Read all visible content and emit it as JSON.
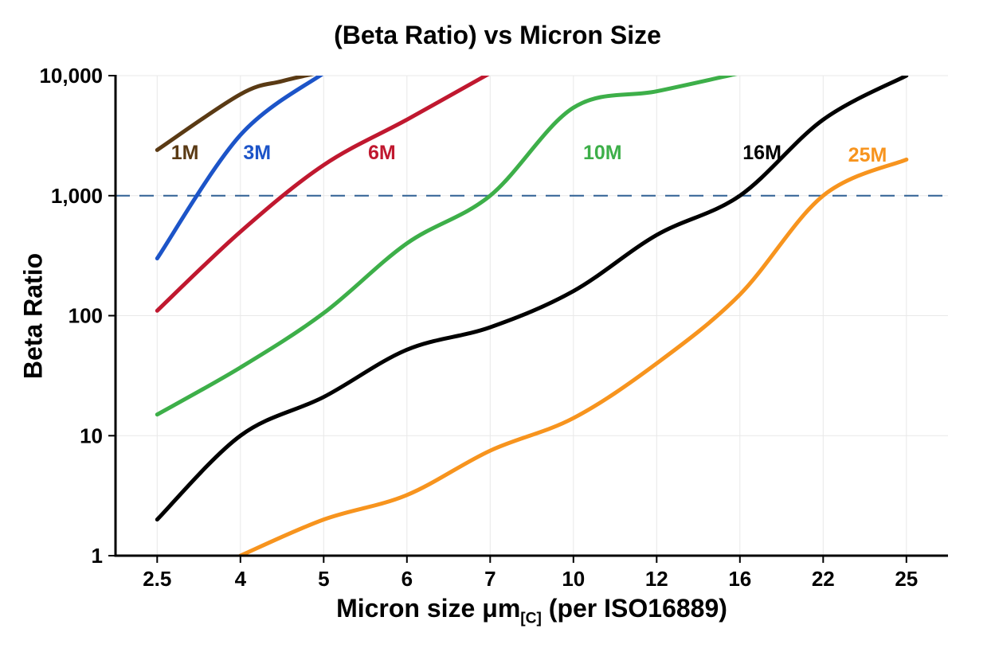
{
  "chart_data": {
    "type": "line",
    "title": "(Beta Ratio) vs Micron Size",
    "ylabel": "Beta Ratio",
    "xlabel_main": "Micron size μm",
    "xlabel_sub": "[C]",
    "xlabel_tail": " (per ISO16889)",
    "y_scale": "log",
    "ylim": [
      1,
      10000
    ],
    "x_ticks": [
      2.5,
      4,
      5,
      6,
      7,
      10,
      12,
      16,
      22,
      25
    ],
    "x_tick_labels": [
      "2.5",
      "4",
      "5",
      "6",
      "7",
      "10",
      "12",
      "16",
      "22",
      "25"
    ],
    "y_ticks": [
      1,
      10,
      100,
      1000,
      10000
    ],
    "y_tick_labels": [
      "1",
      "10",
      "100",
      "1,000",
      "10,000"
    ],
    "grid": true,
    "legend_position": "inline-labels",
    "colors": {
      "grid": "#e8e8e8",
      "axis": "#000000",
      "reference": "#3a6899"
    },
    "reference_line": {
      "value": 1000,
      "style": "dashed",
      "color": "#3a6899"
    },
    "series": [
      {
        "name": "1M",
        "color": "#5a3a14",
        "label": {
          "text": "1M",
          "x": 3.0,
          "y": 2300
        },
        "points": [
          [
            2.5,
            2400
          ],
          [
            4,
            7000
          ],
          [
            4.5,
            9000
          ],
          [
            5,
            10800
          ]
        ]
      },
      {
        "name": "3M",
        "color": "#1c54c8",
        "label": {
          "text": "3M",
          "x": 4.2,
          "y": 2300
        },
        "points": [
          [
            2.5,
            300
          ],
          [
            4,
            3200
          ],
          [
            5,
            10500
          ]
        ]
      },
      {
        "name": "6M",
        "color": "#c0182f",
        "label": {
          "text": "6M",
          "x": 5.7,
          "y": 2300
        },
        "points": [
          [
            2.5,
            110
          ],
          [
            4,
            500
          ],
          [
            5,
            1800
          ],
          [
            6,
            4300
          ],
          [
            7,
            10500
          ]
        ]
      },
      {
        "name": "10M",
        "color": "#3daf49",
        "label": {
          "text": "10M",
          "x": 10.7,
          "y": 2300
        },
        "points": [
          [
            2.5,
            15
          ],
          [
            4,
            37
          ],
          [
            5,
            105
          ],
          [
            6,
            400
          ],
          [
            7,
            1000
          ],
          [
            10,
            5400
          ],
          [
            12,
            7400
          ],
          [
            16,
            10500
          ]
        ]
      },
      {
        "name": "16M",
        "color": "#000000",
        "label": {
          "text": "16M",
          "x": 17.6,
          "y": 2300
        },
        "points": [
          [
            2.5,
            2
          ],
          [
            4,
            10
          ],
          [
            5,
            21
          ],
          [
            6,
            52
          ],
          [
            7,
            80
          ],
          [
            10,
            160
          ],
          [
            12,
            470
          ],
          [
            16,
            1000
          ],
          [
            22,
            4300
          ],
          [
            25,
            10000
          ]
        ]
      },
      {
        "name": "25M",
        "color": "#f7941e",
        "label": {
          "text": "25M",
          "x": 23.6,
          "y": 2200
        },
        "points": [
          [
            4,
            1
          ],
          [
            5,
            2
          ],
          [
            6,
            3.2
          ],
          [
            7,
            7.5
          ],
          [
            10,
            14
          ],
          [
            12,
            40
          ],
          [
            16,
            150
          ],
          [
            22,
            1000
          ],
          [
            25,
            2000
          ]
        ]
      }
    ]
  }
}
